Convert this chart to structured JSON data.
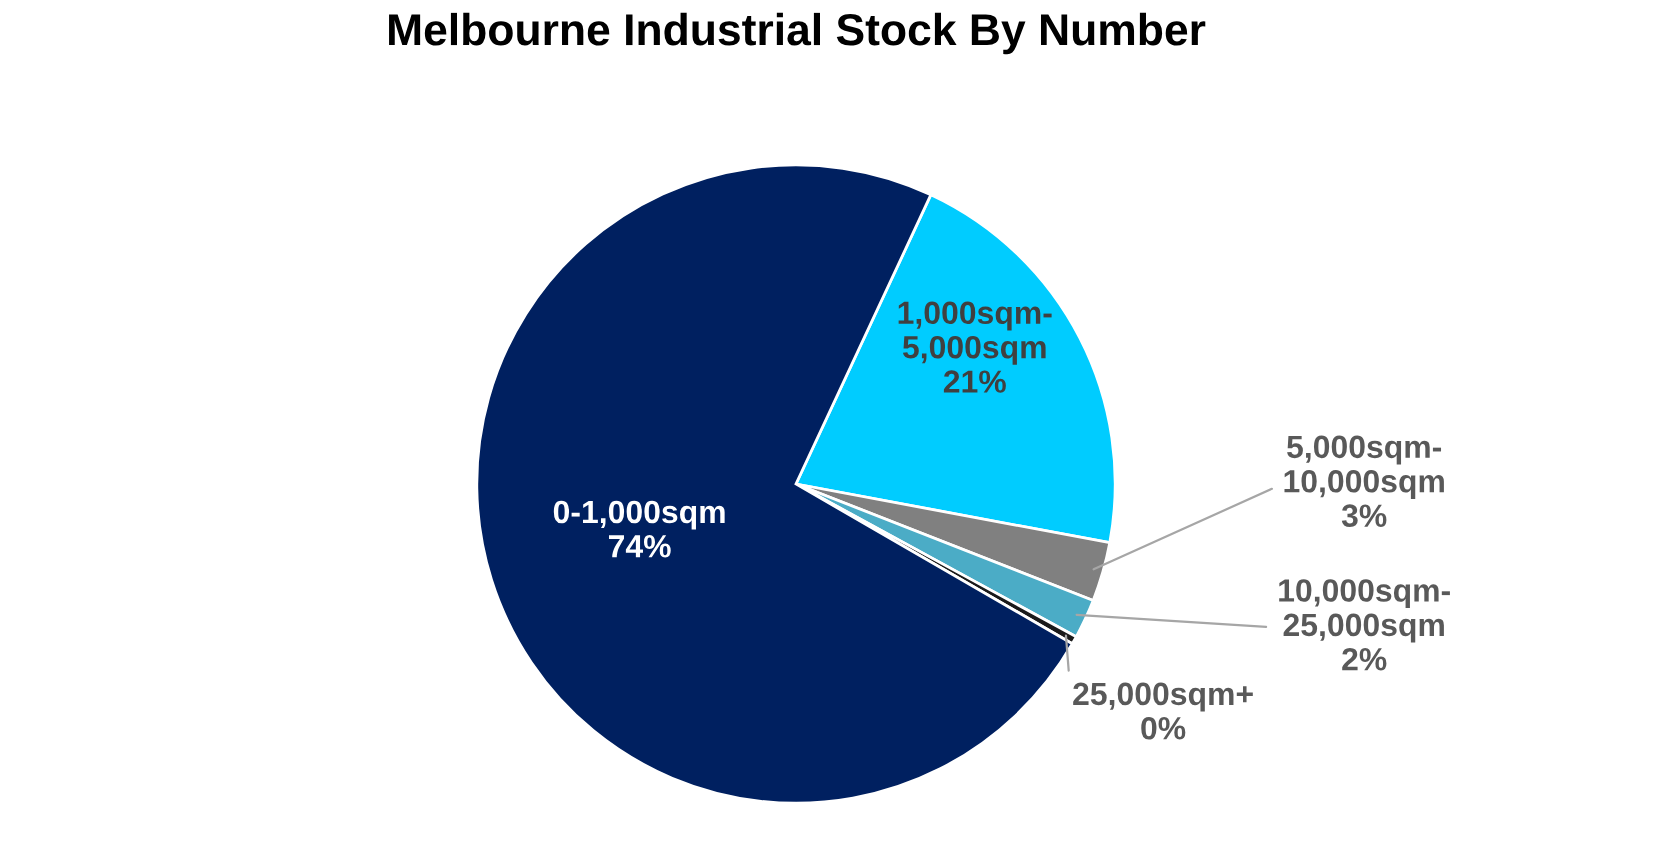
{
  "chart_data": {
    "type": "pie",
    "title": "Melbourne Industrial Stock By Number",
    "categories": [
      "1,000sqm-\n5,000sqm",
      "5,000sqm-\n10,000sqm",
      "10,000sqm-\n25,000sqm",
      "25,000sqm+",
      "0-1,000sqm"
    ],
    "values": [
      21,
      3,
      2,
      0.4,
      73.6
    ],
    "value_labels": [
      "21%",
      "3%",
      "2%",
      "0%",
      "74%"
    ],
    "colors": [
      "#00ccff",
      "#808080",
      "#4bacc6",
      "#1a1a1a",
      "#002060"
    ],
    "legend": false
  }
}
